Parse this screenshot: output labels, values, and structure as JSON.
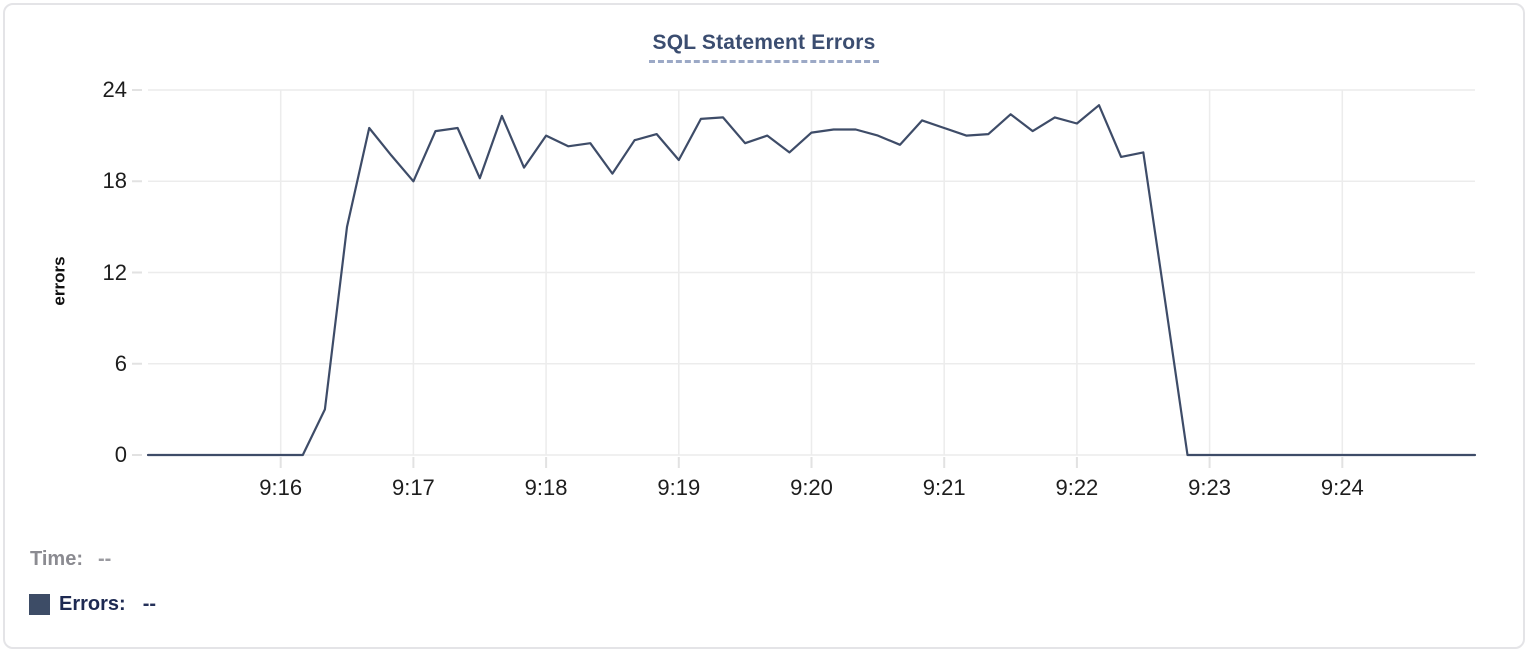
{
  "header": {
    "title": "SQL Statement Errors"
  },
  "chart_data": {
    "type": "line",
    "title": "SQL Statement Errors",
    "xlabel": "",
    "ylabel": "errors",
    "ylim": [
      0,
      24
    ],
    "yticks": [
      0,
      6,
      12,
      18,
      24
    ],
    "x_range_seconds": [
      0,
      600
    ],
    "xticks": [
      {
        "seconds": 60,
        "label": "9:16"
      },
      {
        "seconds": 120,
        "label": "9:17"
      },
      {
        "seconds": 180,
        "label": "9:18"
      },
      {
        "seconds": 240,
        "label": "9:19"
      },
      {
        "seconds": 300,
        "label": "9:20"
      },
      {
        "seconds": 360,
        "label": "9:21"
      },
      {
        "seconds": 420,
        "label": "9:22"
      },
      {
        "seconds": 480,
        "label": "9:23"
      },
      {
        "seconds": 540,
        "label": "9:24"
      }
    ],
    "grid": true,
    "legend_position": "bottom-left",
    "series": [
      {
        "name": "Errors",
        "color": "#3e4c68",
        "interval_seconds": 10,
        "values": [
          0,
          0,
          0,
          0,
          0,
          0,
          0,
          0,
          3,
          15,
          21.5,
          19.7,
          18,
          21.3,
          21.5,
          18.2,
          22.3,
          18.9,
          21,
          20.3,
          20.5,
          18.5,
          20.7,
          21.1,
          19.4,
          22.1,
          22.2,
          20.5,
          21,
          19.9,
          21.2,
          21.4,
          21.4,
          21,
          20.4,
          22,
          21.5,
          21,
          21.1,
          22.4,
          21.3,
          22.2,
          21.8,
          23,
          19.6,
          19.9,
          10,
          0,
          0,
          0,
          0,
          0,
          0,
          0,
          0,
          0,
          0,
          0,
          0,
          0,
          0
        ]
      }
    ]
  },
  "tooltip": {
    "time_label": "Time:",
    "time_value": "--",
    "errors_label": "Errors:",
    "errors_value": "--"
  },
  "colors": {
    "line": "#3e4c68",
    "swatch": "#3d4c66",
    "grid": "#ececec",
    "tick_mark": "#e2e2e2",
    "title": "#3b4d70",
    "axis_text": "#1d1d1d",
    "muted_text": "#8b8b91"
  }
}
